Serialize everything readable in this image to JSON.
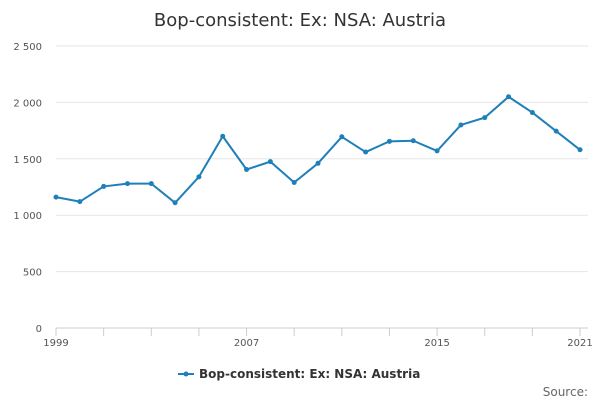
{
  "chart_data": {
    "type": "line",
    "title": "Bop-consistent: Ex: NSA: Austria",
    "xlabel": "",
    "ylabel": "",
    "x": [
      1999,
      2000,
      2001,
      2002,
      2003,
      2004,
      2005,
      2006,
      2007,
      2008,
      2009,
      2010,
      2011,
      2012,
      2013,
      2014,
      2015,
      2016,
      2017,
      2018,
      2019,
      2020,
      2021
    ],
    "x_tick_labels": [
      "1999",
      "2007",
      "2015",
      "2021"
    ],
    "x_tick_values": [
      1999,
      2007,
      2015,
      2021
    ],
    "xlim": [
      1999,
      2021
    ],
    "ylim": [
      0,
      2500
    ],
    "y_ticks": [
      0,
      500,
      1000,
      1500,
      2000,
      2500
    ],
    "y_tick_labels": [
      "0",
      "500",
      "1 000",
      "1 500",
      "2 000",
      "2 500"
    ],
    "grid": true,
    "legend_position": "bottom",
    "series": [
      {
        "name": "Bop-consistent: Ex: NSA: Austria",
        "color": "#1f7fb8",
        "values": [
          1160,
          1120,
          1255,
          1280,
          1280,
          1110,
          1340,
          1700,
          1405,
          1475,
          1290,
          1460,
          1695,
          1560,
          1655,
          1660,
          1570,
          1800,
          1865,
          2050,
          1910,
          1745,
          1580
        ]
      }
    ]
  },
  "footer": {
    "source_label": "Source:"
  }
}
